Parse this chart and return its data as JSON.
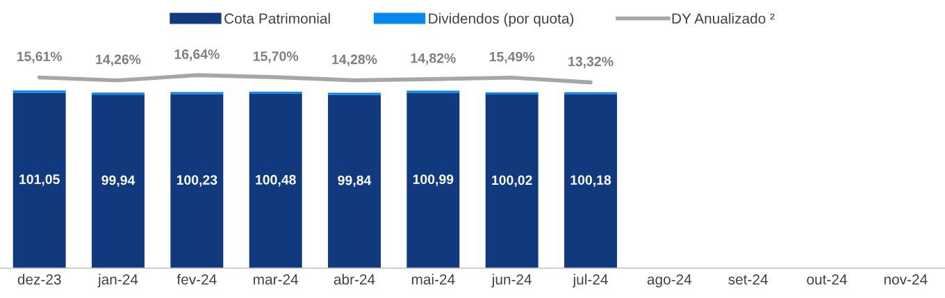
{
  "chart_data": [
    {
      "type": "bar",
      "stacked": true,
      "categories": [
        "dez-23",
        "jan-24",
        "fev-24",
        "mar-24",
        "abr-24",
        "mai-24",
        "jun-24",
        "jul-24",
        "ago-24",
        "set-24",
        "out-24",
        "nov-24"
      ],
      "series": [
        {
          "name": "Cota Patrimonial",
          "color": "#103a7d",
          "value_labels": [
            "101,05",
            "99,94",
            "100,23",
            "100,48",
            "99,84",
            "100,99",
            "100,02",
            "100,18",
            null,
            null,
            null,
            null
          ],
          "values": [
            101.05,
            99.94,
            100.23,
            100.48,
            99.84,
            100.99,
            100.02,
            100.18,
            null,
            null,
            null,
            null
          ]
        },
        {
          "name": "Dividendos (por quota)",
          "color": "#0787ec",
          "values": [
            1.25,
            1.21,
            1.21,
            1.17,
            1.21,
            1.17,
            1.17,
            1.17,
            null,
            null,
            null,
            null
          ]
        }
      ],
      "grid": false,
      "legend": "top"
    },
    {
      "type": "line",
      "categories": [
        null,
        null,
        null,
        null,
        null,
        null,
        null,
        null,
        null,
        null,
        null,
        null
      ],
      "series": [
        {
          "name": "DY Anualizado ²",
          "color": "#a6a6a6",
          "value_labels": [
            "15,61%",
            "14,26%",
            "16,64%",
            "15,70%",
            "14,28%",
            "14,82%",
            "15,49%",
            "13,32%",
            null,
            null,
            null,
            null
          ],
          "values": [
            15.61,
            14.26,
            16.64,
            15.7,
            14.28,
            14.82,
            15.49,
            13.32,
            null,
            null,
            null,
            null
          ]
        }
      ],
      "grid": false,
      "legend": "top",
      "marker": "none",
      "line_style": "solid"
    }
  ]
}
